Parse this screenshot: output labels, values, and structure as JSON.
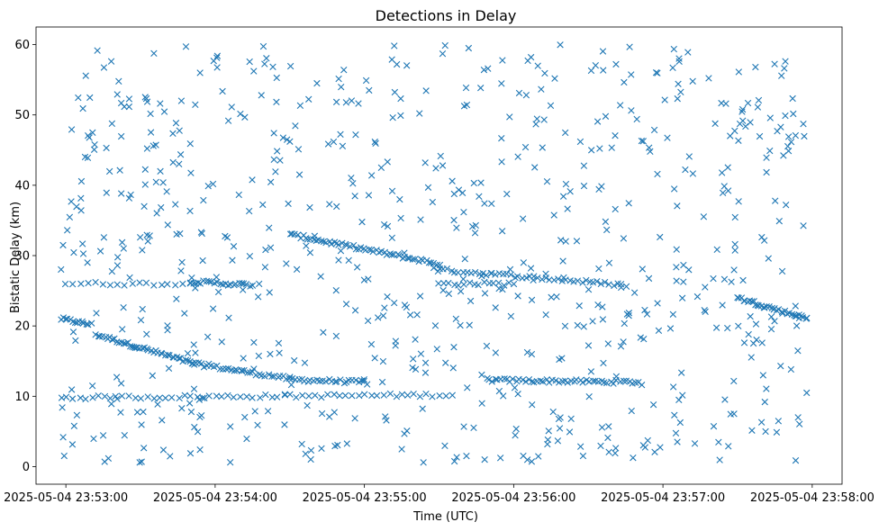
{
  "chart_data": {
    "type": "scatter",
    "title": "Detections in Delay",
    "xlabel": "Time (UTC)",
    "ylabel": "Bistatic Delay (km)",
    "xlim": [
      "2025-05-04 23:52:48",
      "2025-05-04 23:58:12"
    ],
    "ylim": [
      -2.5,
      62.5
    ],
    "xticks": [
      "2025-05-04 23:53:00",
      "2025-05-04 23:54:00",
      "2025-05-04 23:55:00",
      "2025-05-04 23:56:00",
      "2025-05-04 23:57:00",
      "2025-05-04 23:58:00"
    ],
    "yticks": [
      0,
      10,
      20,
      30,
      40,
      50,
      60
    ],
    "marker": "x",
    "color": "#1f77b4",
    "grid": false,
    "legend": "none",
    "tracks": [
      {
        "t_start": "2025-05-04 23:52:58",
        "t_end": "2025-05-04 23:53:10",
        "delay_start": 21.0,
        "delay_end": 20.2,
        "count": 14
      },
      {
        "t_start": "2025-05-04 23:53:12",
        "t_end": "2025-05-04 23:53:52",
        "delay_start": 18.8,
        "delay_end": 14.6,
        "count": 44
      },
      {
        "t_start": "2025-05-04 23:53:52",
        "t_end": "2025-05-04 23:54:30",
        "delay_start": 14.6,
        "delay_end": 12.5,
        "count": 32
      },
      {
        "t_start": "2025-05-04 23:54:30",
        "t_end": "2025-05-04 23:55:00",
        "delay_start": 12.4,
        "delay_end": 12.0,
        "count": 26
      },
      {
        "t_start": "2025-05-04 23:55:50",
        "t_end": "2025-05-04 23:56:50",
        "delay_start": 12.3,
        "delay_end": 12.0,
        "count": 50
      },
      {
        "t_start": "2025-05-04 23:52:58",
        "t_end": "2025-05-04 23:55:35",
        "delay_start": 9.8,
        "delay_end": 10.2,
        "count": 64
      },
      {
        "t_start": "2025-05-04 23:53:00",
        "t_end": "2025-05-04 23:53:50",
        "delay_start": 26.0,
        "delay_end": 26.0,
        "count": 18
      },
      {
        "t_start": "2025-05-04 23:53:50",
        "t_end": "2025-05-04 23:54:15",
        "delay_start": 26.3,
        "delay_end": 25.8,
        "count": 24
      },
      {
        "t_start": "2025-05-04 23:54:30",
        "t_end": "2025-05-04 23:55:30",
        "delay_start": 33.0,
        "delay_end": 28.8,
        "count": 58
      },
      {
        "t_start": "2025-05-04 23:55:30",
        "t_end": "2025-05-04 23:56:45",
        "delay_start": 28.0,
        "delay_end": 25.8,
        "count": 48
      },
      {
        "t_start": "2025-05-04 23:57:30",
        "t_end": "2025-05-04 23:57:58",
        "delay_start": 24.0,
        "delay_end": 21.0,
        "count": 36
      },
      {
        "t_start": "2025-05-04 23:55:30",
        "t_end": "2025-05-04 23:56:00",
        "delay_start": 26.0,
        "delay_end": 26.0,
        "count": 16
      }
    ],
    "clutter": {
      "t_start": "2025-05-04 23:52:58",
      "t_end": "2025-05-04 23:57:58",
      "delay_min": 0.5,
      "delay_max": 60,
      "count": 720
    }
  }
}
